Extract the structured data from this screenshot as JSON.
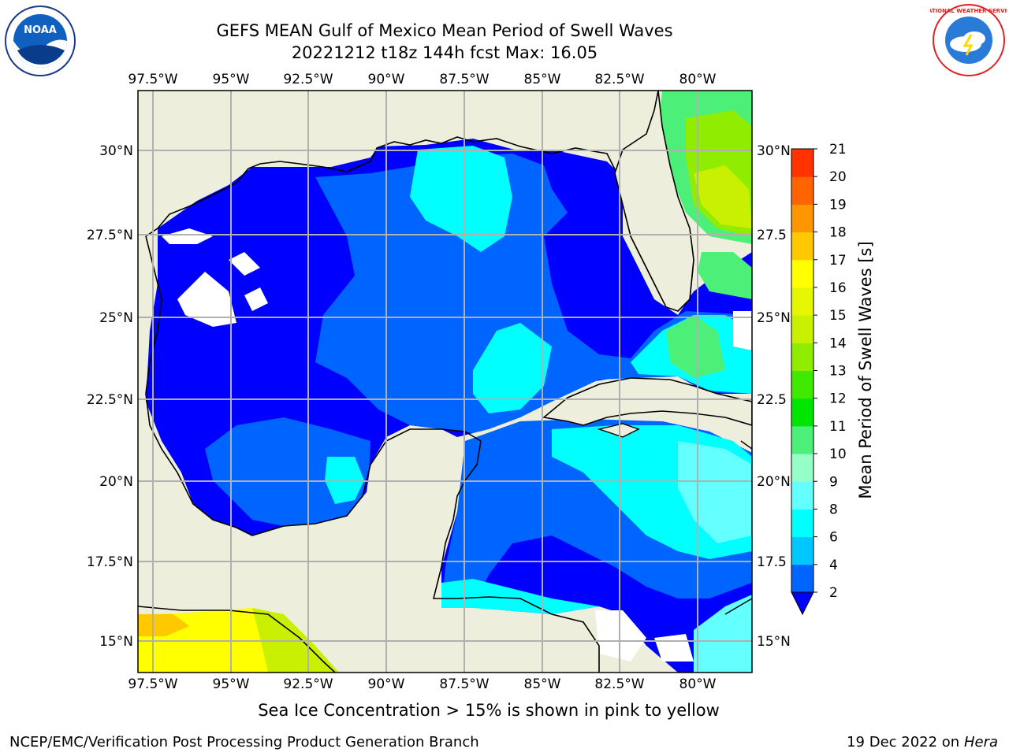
{
  "header": {
    "title": "GEFS MEAN Gulf of Mexico Mean Period of Swell Waves",
    "subtitle": "20221212 t18z 144h fcst   Max: 16.05"
  },
  "logos": {
    "left": "noaa-logo",
    "left_text": "NOAA",
    "right": "national-weather-service-logo",
    "right_text": "NATIONAL WEATHER SERVICE"
  },
  "map": {
    "lon_labels": [
      "97.5°W",
      "95°W",
      "92.5°W",
      "90°W",
      "87.5°W",
      "85°W",
      "82.5°W",
      "80°W"
    ],
    "lat_labels_left": [
      "30°N",
      "27.5°N",
      "25°N",
      "22.5°N",
      "20°N",
      "17.5°N",
      "15°N"
    ],
    "lat_labels_right": [
      "30°N",
      "27.5",
      "25°N",
      "22.5",
      "20°N",
      "17.5",
      "15°N"
    ],
    "extent": {
      "lon_min": -98.0,
      "lon_max": -79.0,
      "lat_min": 14.0,
      "lat_max": 31.8
    },
    "land_color": "#eeeedd",
    "grid_color": "#b0b0b0"
  },
  "colorbar": {
    "label": "Mean Period of Swell Waves [s]",
    "levels": [
      "2",
      "4",
      "6",
      "8",
      "9",
      "10",
      "11",
      "12",
      "13",
      "14",
      "15",
      "16",
      "17",
      "18",
      "19",
      "20",
      "21"
    ],
    "colors": [
      "#0064ff",
      "#00c8ff",
      "#00ffff",
      "#64ffff",
      "#96ffc8",
      "#4cf078",
      "#00e600",
      "#40ea00",
      "#90ec00",
      "#c8f000",
      "#e6f500",
      "#ffff00",
      "#ffc800",
      "#ff9600",
      "#ff6400",
      "#ff3200",
      "#ff0000"
    ],
    "under_color": "#0000ff"
  },
  "footer": {
    "note": "Sea Ice Concentration > 15% is shown in pink to yellow",
    "credit_left": "NCEP/EMC/Verification Post Processing Product Generation Branch",
    "credit_date": "19 Dec 2022 on",
    "credit_host": "Hera"
  }
}
